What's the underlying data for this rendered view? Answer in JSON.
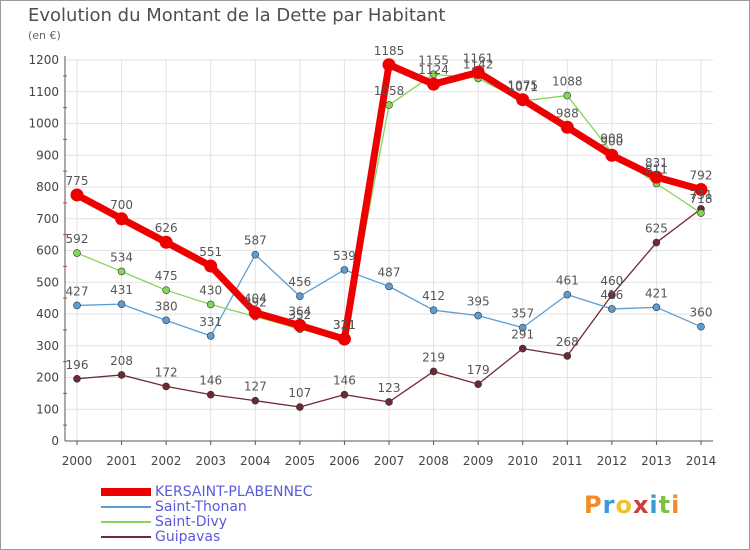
{
  "header": {
    "title": "Evolution du Montant de la Dette par Habitant",
    "unit": "(en €)"
  },
  "logo": {
    "text": "Proxiti",
    "colors": [
      "#f28c28",
      "#3a9ad9",
      "#f2c12e",
      "#d03c3c",
      "#3a9ad9",
      "#7cc242",
      "#f28c28"
    ]
  },
  "chart_data": {
    "type": "line",
    "title": "Evolution du Montant de la Dette par Habitant",
    "ylabel": "(en €)",
    "xlabel": "",
    "x": [
      "2000",
      "2001",
      "2002",
      "2003",
      "2004",
      "2005",
      "2006",
      "2007",
      "2008",
      "2009",
      "2010",
      "2011",
      "2012",
      "2013",
      "2014"
    ],
    "ylim": [
      0,
      1200
    ],
    "yticks": [
      "0",
      "100",
      "200",
      "300",
      "400",
      "500",
      "600",
      "700",
      "800",
      "900",
      "1000",
      "1100",
      "1200"
    ],
    "grid": true,
    "legend": "bottom-left",
    "series": [
      {
        "name": "KERSAINT-PLABENNEC",
        "color": "#ee0000",
        "values": [
          775,
          700,
          626,
          551,
          404,
          364,
          321,
          1185,
          1124,
          1161,
          1075,
          988,
          900,
          831,
          792
        ],
        "labels": [
          "775",
          "700",
          "626",
          "551",
          "404",
          "364",
          "321",
          "1185",
          "1124",
          "1161",
          "1075",
          "988",
          "900",
          "831",
          "792"
        ]
      },
      {
        "name": "Saint-Thonan",
        "color": "#5b9ed6",
        "values": [
          427,
          431,
          380,
          331,
          587,
          456,
          539,
          487,
          412,
          395,
          357,
          461,
          416,
          421,
          360
        ],
        "labels": [
          "427",
          "431",
          "380",
          "331",
          "587",
          "456",
          "539",
          "487",
          "412",
          "395",
          "357",
          "461",
          "416",
          "421",
          "360"
        ]
      },
      {
        "name": "Saint-Divy",
        "color": "#86d45a",
        "values": [
          592,
          534,
          475,
          430,
          392,
          352,
          321,
          1058,
          1155,
          1142,
          1071,
          1088,
          908,
          811,
          718
        ],
        "labels": [
          "592",
          "534",
          "475",
          "430",
          "392",
          "352",
          "321",
          "1058",
          "1155",
          "1142",
          "1071",
          "1088",
          "908",
          "811",
          "718"
        ]
      },
      {
        "name": "Guipavas",
        "color": "#6e2a32",
        "values": [
          196,
          208,
          172,
          146,
          127,
          107,
          146,
          123,
          219,
          179,
          291,
          268,
          460,
          625,
          731
        ],
        "labels": [
          "196",
          "208",
          "172",
          "146",
          "127",
          "107",
          "146",
          "123",
          "219",
          "179",
          "291",
          "268",
          "460",
          "625",
          "731"
        ]
      }
    ]
  }
}
